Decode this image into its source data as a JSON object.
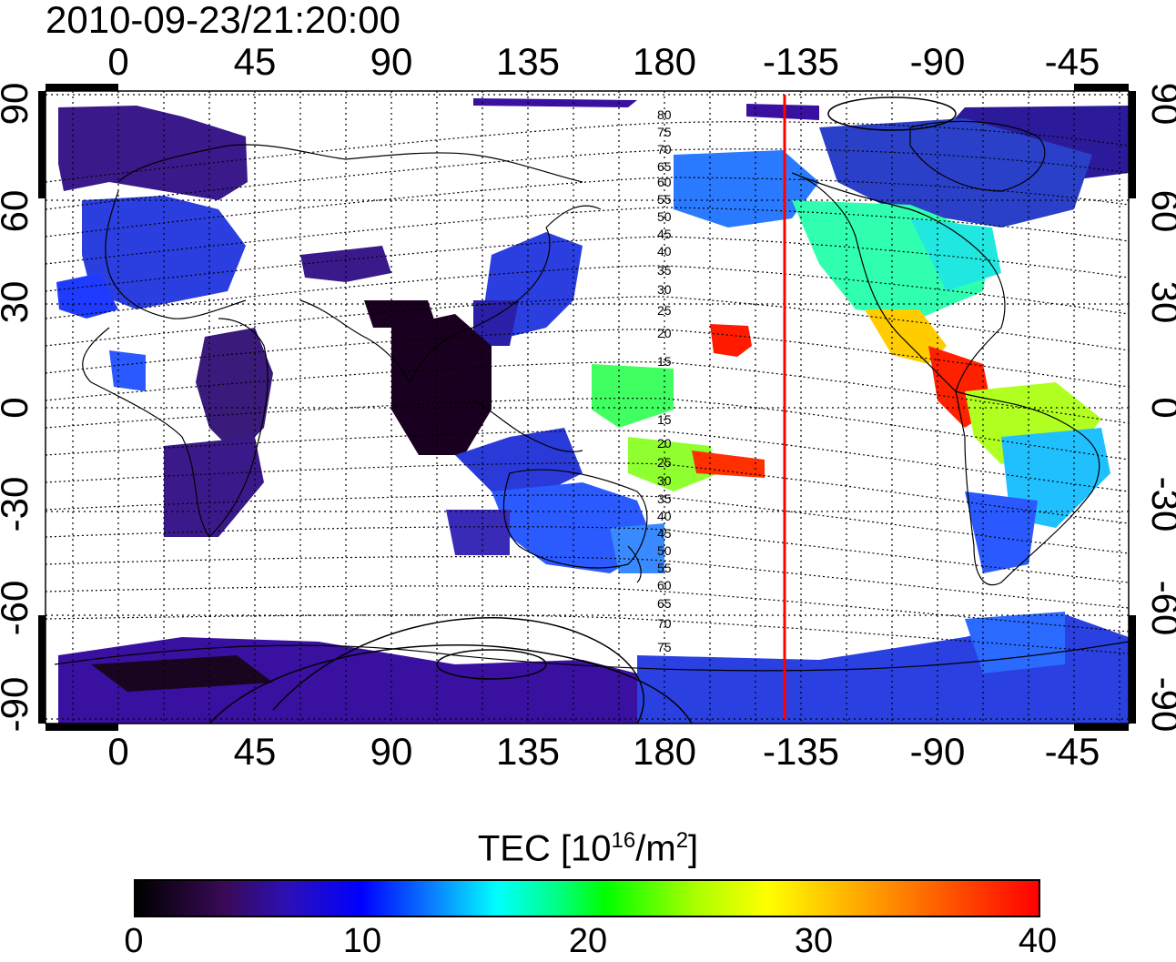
{
  "timestamp": "2010-09-23/21:20:00",
  "longitude_ticks": [
    "0",
    "45",
    "90",
    "135",
    "180",
    "-135",
    "-90",
    "-45"
  ],
  "latitude_ticks": [
    "90",
    "60",
    "30",
    "0",
    "-30",
    "-60",
    "-90"
  ],
  "contour_labels_north": [
    "80",
    "75",
    "70",
    "65",
    "60",
    "55",
    "50",
    "45",
    "40",
    "35",
    "30",
    "25",
    "20",
    "15"
  ],
  "contour_labels_south": [
    "15",
    "20",
    "25",
    "30",
    "35",
    "40",
    "45",
    "50",
    "55",
    "60",
    "65",
    "70",
    "75"
  ],
  "terminator_longitude": "-140",
  "colorbar": {
    "title_prefix": "TEC  [10",
    "title_exp": "16",
    "title_mid": "/m",
    "title_exp2": "2",
    "title_suffix": "]",
    "ticks": [
      "0",
      "10",
      "20",
      "30",
      "40"
    ]
  },
  "colors": {
    "terminator": "#ff0000",
    "low": "#2a0a5a",
    "mid": "#00ffff",
    "high": "#ff0000"
  }
}
